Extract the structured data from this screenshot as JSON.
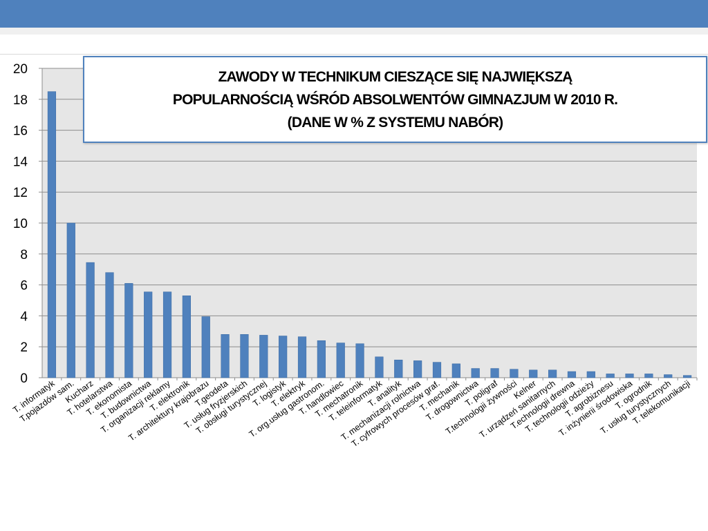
{
  "colors": {
    "header_bar": "#4f81bd",
    "bar_fill": "#4f81bd",
    "plot_bg": "#e6e6e6",
    "title_border": "#4f81bd"
  },
  "title": {
    "line1": "ZAWODY W TECHNIKUM CIESZĄCE SIĘ NAJWIĘKSZĄ",
    "line2": "POPULARNOŚCIĄ WŚRÓD ABSOLWENTÓW GIMNAZJUM  W  2010 R.",
    "line3": "(DANE W % Z SYSTEMU NABÓR)"
  },
  "chart_data": {
    "type": "bar",
    "title": "ZAWODY W TECHNIKUM CIESZĄCE SIĘ NAJWIĘKSZĄ POPULARNOŚCIĄ WŚRÓD ABSOLWENTÓW GIMNAZJUM  W  2010 R. (DANE W % Z SYSTEMU NABÓR)",
    "xlabel": "",
    "ylabel": "",
    "ylim": [
      0,
      20
    ],
    "yticks": [
      0,
      2,
      4,
      6,
      8,
      10,
      12,
      14,
      16,
      18,
      20
    ],
    "grid": true,
    "categories": [
      "T. informatyk",
      "T.pojazdów sam.",
      "Kucharz",
      "T. hotelarstwa",
      "T. ekonomista",
      "T. budownictwa",
      "T. organizacji reklamy",
      "T. elektronik",
      "T. architektury krajobrazu",
      "T.geodeta",
      "T. usług fryzjerskich",
      "T. obsługi turystycznej",
      "T. logistyk",
      "T. elektryk",
      "T. org.usług gastronom.",
      "T. handlowiec",
      "T. mechatronik",
      "T. teleinformatyk",
      "T. analityk",
      "T. mechanizacji rolnictwa",
      "T. cyfrowych procesów graf.",
      "T. mechanik",
      "T. drogownictwa",
      "T. poligraf",
      "T.technologii żywności",
      "Kelner",
      "T. urządzeń sanitarnych",
      "T.echnologii drewna",
      "T. technologii odzieży",
      "T. agrobiznesu",
      "T. inżynierii środowiska",
      "T. ogrodnik",
      "T. usług turystycznych",
      "T. telekomunikacji"
    ],
    "values": [
      18.5,
      10,
      7.45,
      6.8,
      6.1,
      5.55,
      5.55,
      5.3,
      3.95,
      2.8,
      2.8,
      2.75,
      2.7,
      2.65,
      2.4,
      2.25,
      2.2,
      1.35,
      1.15,
      1.1,
      1.0,
      0.9,
      0.6,
      0.6,
      0.55,
      0.5,
      0.5,
      0.4,
      0.4,
      0.25,
      0.25,
      0.25,
      0.2,
      0.15
    ]
  }
}
